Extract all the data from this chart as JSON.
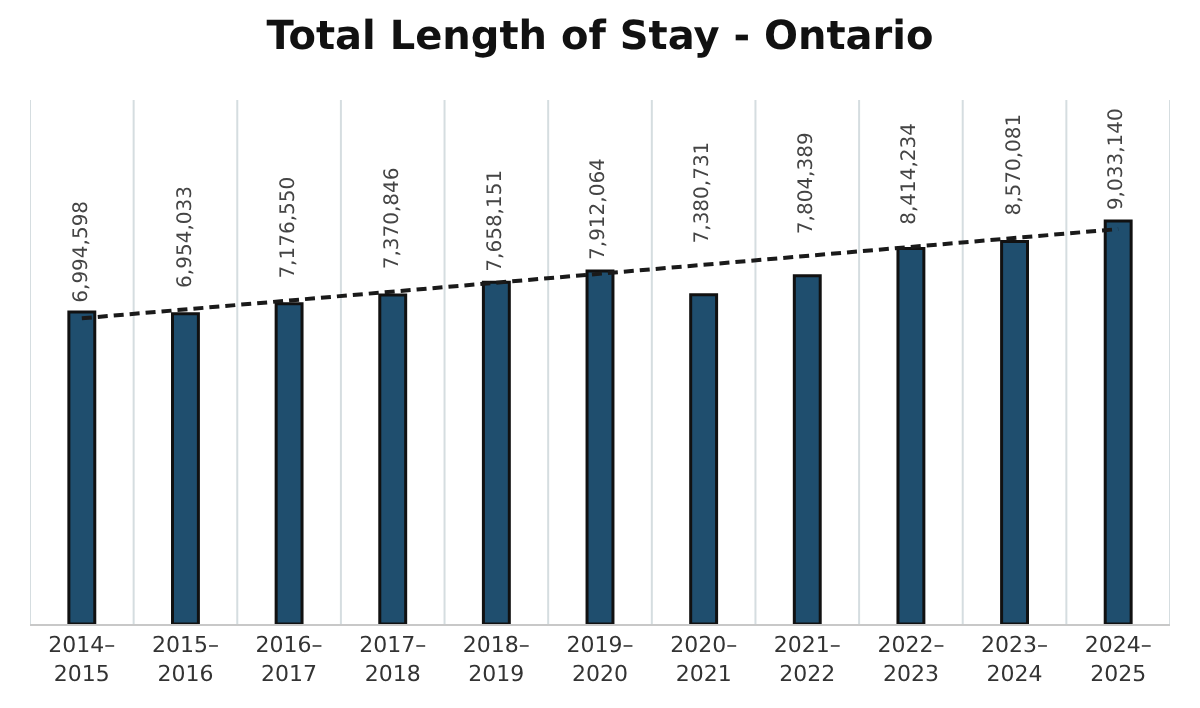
{
  "chart_data": {
    "type": "bar",
    "title": "Total Length of Stay - Ontario",
    "categories": [
      "2014–\n2015",
      "2015–\n2016",
      "2016–\n2017",
      "2017–\n2018",
      "2018–\n2019",
      "2019–\n2020",
      "2020–\n2021",
      "2021–\n2022",
      "2022–\n2023",
      "2023–\n2024",
      "2024–\n2025"
    ],
    "series": [
      {
        "color": "#1f4e6e",
        "values": [
          6994598,
          6954033,
          7176550,
          7370846,
          7658151,
          7912064,
          7380731,
          7804389,
          8414234,
          8570081,
          9033140
        ],
        "value_labels": [
          "6,994,598",
          "6,954,033",
          "7,176,550",
          "7,370,846",
          "7,658,151",
          "7,912,064",
          "7,380,731",
          "7,804,389",
          "8,414,234",
          "8,570,081",
          "9,033,140"
        ]
      },
      {
        "type": "line",
        "color": "#1a1a1a",
        "line_style": "dashed",
        "marker": "none",
        "x": [
          "2014–\n2015",
          "2024–\n2025"
        ],
        "values": [
          6850000,
          8850000
        ]
      }
    ],
    "grid": "x",
    "tick_labels": "x",
    "legend": false
  }
}
